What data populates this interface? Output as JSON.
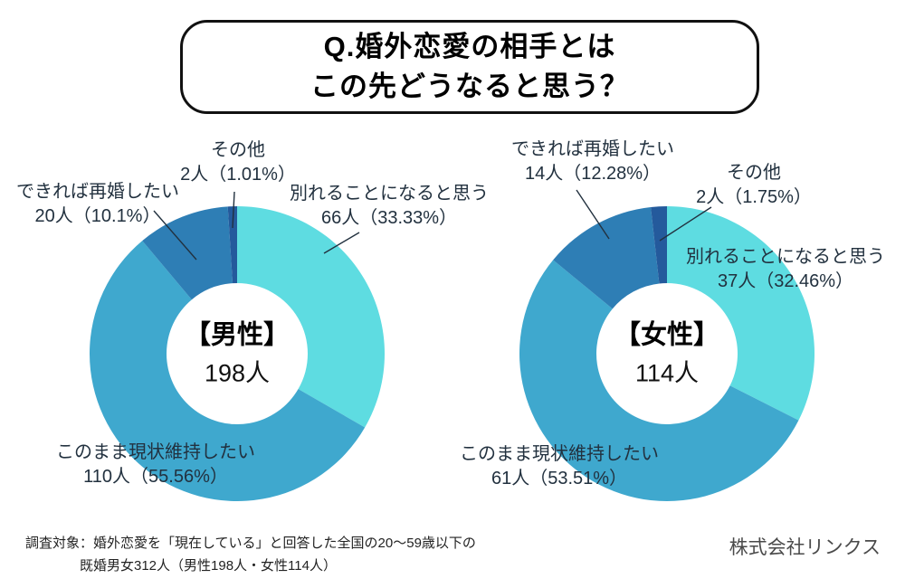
{
  "title": {
    "line1": "Q.婚外恋愛の相手とは",
    "line2": "この先どうなると思う？"
  },
  "chart_data": [
    {
      "type": "pie",
      "style": "donut",
      "group": "男性",
      "center_title": "【男性】",
      "center_value": "198人",
      "total": 198,
      "legend_position": "none",
      "slices": [
        {
          "label": "別れることになると思う",
          "value": 66,
          "pct": 33.33,
          "count_label": "66人（33.33%）",
          "color": "#5EDCE1"
        },
        {
          "label": "このまま現状維持したい",
          "value": 110,
          "pct": 55.56,
          "count_label": "110人（55.56%）",
          "color": "#3FA8CE"
        },
        {
          "label": "できれば再婚したい",
          "value": 20,
          "pct": 10.1,
          "count_label": "20人（10.1%）",
          "color": "#2E7EB5"
        },
        {
          "label": "その他",
          "value": 2,
          "pct": 1.01,
          "count_label": "2人（1.01%）",
          "color": "#245A9C"
        }
      ]
    },
    {
      "type": "pie",
      "style": "donut",
      "group": "女性",
      "center_title": "【女性】",
      "center_value": "114人",
      "total": 114,
      "legend_position": "none",
      "slices": [
        {
          "label": "別れることになると思う",
          "value": 37,
          "pct": 32.46,
          "count_label": "37人（32.46%）",
          "color": "#5EDCE1"
        },
        {
          "label": "このまま現状維持したい",
          "value": 61,
          "pct": 53.51,
          "count_label": "61人（53.51%）",
          "color": "#3FA8CE"
        },
        {
          "label": "できれば再婚したい",
          "value": 14,
          "pct": 12.28,
          "count_label": "14人（12.28%）",
          "color": "#2E7EB5"
        },
        {
          "label": "その他",
          "value": 2,
          "pct": 1.75,
          "count_label": "2人（1.75%）",
          "color": "#245A9C"
        }
      ]
    }
  ],
  "footer": {
    "survey_note_line1": "調査対象：婚外恋愛を「現在している」と回答した全国の20〜59歳以下の",
    "survey_note_line2": "既婚男女312人（男性198人・女性114人）",
    "company": "株式会社リンクス"
  },
  "colors": {
    "slice_teal": "#5EDCE1",
    "slice_blue": "#3FA8CE",
    "slice_dark_blue": "#2E7EB5",
    "slice_navy": "#245A9C",
    "title_border": "#111111",
    "annotation_text": "#22313f",
    "leader_line": "#22313f",
    "company_text": "#4a4a4a",
    "background": "#ffffff"
  }
}
